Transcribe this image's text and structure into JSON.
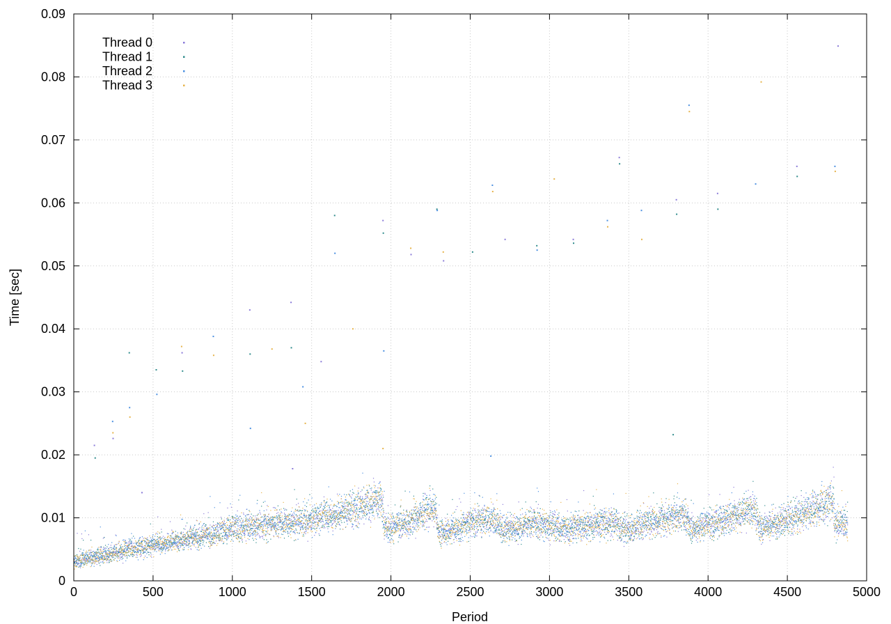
{
  "chart_data": {
    "type": "scatter",
    "title": "",
    "xlabel": "Period",
    "ylabel": "Time [sec]",
    "xlim": [
      0,
      5000
    ],
    "ylim": [
      0,
      0.09
    ],
    "xticks": [
      0,
      500,
      1000,
      1500,
      2000,
      2500,
      3000,
      3500,
      4000,
      4500,
      5000
    ],
    "xtick_labels": [
      "0",
      "500",
      "1000",
      "1500",
      "2000",
      "2500",
      "3000",
      "3500",
      "4000",
      "4500",
      "5000"
    ],
    "yticks": [
      0,
      0.01,
      0.02,
      0.03,
      0.04,
      0.05,
      0.06,
      0.07,
      0.08,
      0.09
    ],
    "ytick_labels": [
      "0",
      "0.01",
      "0.02",
      "0.03",
      "0.04",
      "0.05",
      "0.06",
      "0.07",
      "0.08",
      "0.09"
    ],
    "grid": true,
    "legend_position": "top-left",
    "trend": [
      [
        0,
        0.0032
      ],
      [
        100,
        0.0036
      ],
      [
        200,
        0.0042
      ],
      [
        300,
        0.0047
      ],
      [
        400,
        0.0052
      ],
      [
        500,
        0.0056
      ],
      [
        600,
        0.006
      ],
      [
        700,
        0.0065
      ],
      [
        800,
        0.007
      ],
      [
        900,
        0.0076
      ],
      [
        1000,
        0.0082
      ],
      [
        1100,
        0.0086
      ],
      [
        1200,
        0.0089
      ],
      [
        1300,
        0.0092
      ],
      [
        1400,
        0.0093
      ],
      [
        1500,
        0.0096
      ],
      [
        1600,
        0.0102
      ],
      [
        1700,
        0.0108
      ],
      [
        1800,
        0.0114
      ],
      [
        1900,
        0.0125
      ],
      [
        1940,
        0.013
      ],
      [
        1960,
        0.0085
      ],
      [
        2000,
        0.0082
      ],
      [
        2100,
        0.0092
      ],
      [
        2200,
        0.0105
      ],
      [
        2280,
        0.0118
      ],
      [
        2300,
        0.0075
      ],
      [
        2400,
        0.0082
      ],
      [
        2500,
        0.009
      ],
      [
        2600,
        0.0098
      ],
      [
        2650,
        0.0096
      ],
      [
        2700,
        0.0082
      ],
      [
        2800,
        0.0084
      ],
      [
        2900,
        0.0092
      ],
      [
        3000,
        0.0088
      ],
      [
        3100,
        0.0082
      ],
      [
        3200,
        0.0084
      ],
      [
        3300,
        0.009
      ],
      [
        3400,
        0.0093
      ],
      [
        3450,
        0.0085
      ],
      [
        3500,
        0.0082
      ],
      [
        3600,
        0.0088
      ],
      [
        3700,
        0.0095
      ],
      [
        3800,
        0.01
      ],
      [
        3850,
        0.0103
      ],
      [
        3900,
        0.0082
      ],
      [
        4000,
        0.009
      ],
      [
        4100,
        0.0096
      ],
      [
        4200,
        0.0105
      ],
      [
        4300,
        0.0115
      ],
      [
        4320,
        0.0085
      ],
      [
        4400,
        0.0088
      ],
      [
        4500,
        0.0097
      ],
      [
        4600,
        0.0105
      ],
      [
        4700,
        0.0118
      ],
      [
        4790,
        0.0128
      ],
      [
        4800,
        0.009
      ],
      [
        4880,
        0.0088
      ]
    ],
    "outliers": [
      [
        130,
        0.0215
      ],
      [
        135,
        0.0195
      ],
      [
        245,
        0.0253
      ],
      [
        247,
        0.0235
      ],
      [
        248,
        0.0226
      ],
      [
        350,
        0.0362
      ],
      [
        352,
        0.0275
      ],
      [
        354,
        0.026
      ],
      [
        430,
        0.014
      ],
      [
        520,
        0.0335
      ],
      [
        524,
        0.0296
      ],
      [
        680,
        0.0372
      ],
      [
        683,
        0.0362
      ],
      [
        686,
        0.0333
      ],
      [
        880,
        0.0388
      ],
      [
        882,
        0.0358
      ],
      [
        1110,
        0.043
      ],
      [
        1112,
        0.036
      ],
      [
        1114,
        0.0242
      ],
      [
        1250,
        0.0368
      ],
      [
        1370,
        0.0442
      ],
      [
        1372,
        0.037
      ],
      [
        1445,
        0.0308
      ],
      [
        1460,
        0.025
      ],
      [
        1560,
        0.0348
      ],
      [
        1645,
        0.058
      ],
      [
        1647,
        0.052
      ],
      [
        1760,
        0.04
      ],
      [
        1950,
        0.0572
      ],
      [
        1952,
        0.0552
      ],
      [
        1955,
        0.0365
      ],
      [
        2125,
        0.0528
      ],
      [
        2127,
        0.0518
      ],
      [
        2290,
        0.059
      ],
      [
        2292,
        0.0588
      ],
      [
        2330,
        0.0522
      ],
      [
        2332,
        0.0508
      ],
      [
        2515,
        0.0522
      ],
      [
        2640,
        0.0628
      ],
      [
        2642,
        0.0618
      ],
      [
        2720,
        0.0542
      ],
      [
        2920,
        0.0532
      ],
      [
        2922,
        0.0525
      ],
      [
        3030,
        0.0638
      ],
      [
        3150,
        0.0542
      ],
      [
        3152,
        0.0536
      ],
      [
        3365,
        0.0572
      ],
      [
        3367,
        0.0562
      ],
      [
        3440,
        0.0672
      ],
      [
        3442,
        0.0662
      ],
      [
        3580,
        0.0588
      ],
      [
        3582,
        0.0542
      ],
      [
        3800,
        0.0605
      ],
      [
        3802,
        0.0582
      ],
      [
        3880,
        0.0755
      ],
      [
        3882,
        0.0745
      ],
      [
        4060,
        0.0615
      ],
      [
        4062,
        0.059
      ],
      [
        4300,
        0.063
      ],
      [
        4335,
        0.0792
      ],
      [
        4560,
        0.0658
      ],
      [
        4562,
        0.0642
      ],
      [
        4800,
        0.0658
      ],
      [
        4802,
        0.065
      ],
      [
        4820,
        0.0849
      ],
      [
        3780,
        0.0232
      ],
      [
        2630,
        0.0198
      ],
      [
        1950,
        0.021
      ],
      [
        1380,
        0.0178
      ]
    ],
    "series": [
      {
        "name": "Thread 0",
        "color": "#8a7ad8"
      },
      {
        "name": "Thread 1",
        "color": "#2e8b8b"
      },
      {
        "name": "Thread 2",
        "color": "#4a8fe0"
      },
      {
        "name": "Thread 3",
        "color": "#e6b34a"
      }
    ]
  }
}
